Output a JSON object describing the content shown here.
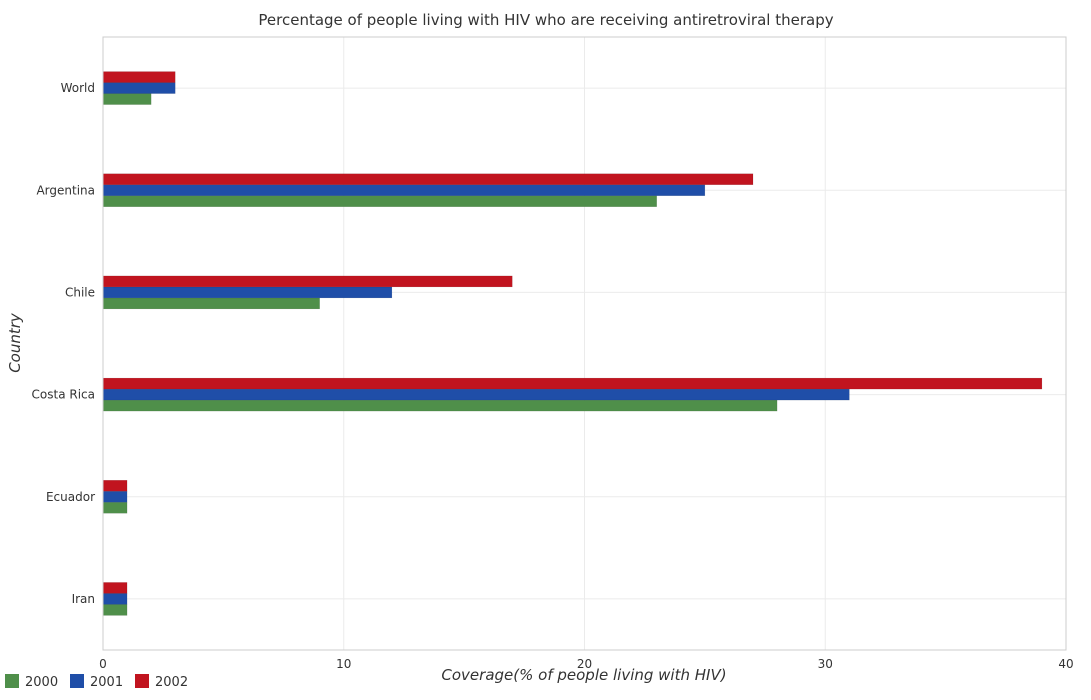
{
  "chart_data": {
    "type": "bar",
    "orientation": "horizontal",
    "title": "Percentage of people living with HIV who are receiving antiretroviral therapy",
    "xlabel": "Coverage(% of people living with HIV)",
    "ylabel": "Country",
    "xlim": [
      0,
      40
    ],
    "xticks": [
      0,
      10,
      20,
      30,
      40
    ],
    "categories": [
      "World",
      "Argentina",
      "Chile",
      "Costa Rica",
      "Ecuador",
      "Iran"
    ],
    "series": [
      {
        "name": "2000",
        "color": "#4f8f4a",
        "values": [
          2,
          23,
          9,
          28,
          1,
          1
        ]
      },
      {
        "name": "2001",
        "color": "#1f4ea8",
        "values": [
          3,
          25,
          12,
          31,
          1,
          1
        ]
      },
      {
        "name": "2002",
        "color": "#c1141f",
        "values": [
          3,
          27,
          17,
          39,
          1,
          1
        ]
      }
    ],
    "grid": true,
    "legend_position": "bottom-left"
  }
}
